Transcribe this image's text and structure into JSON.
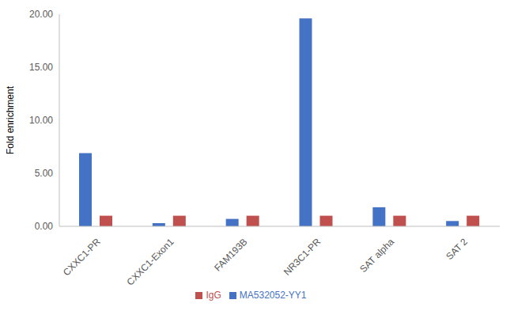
{
  "chart_data": {
    "type": "bar",
    "y_label": "Fold enrichment",
    "categories": [
      "CXXC1-PR",
      "CXXC1-Exon1",
      "FAM193B",
      "NR3C1-PR",
      "SAT alpha",
      "SAT 2"
    ],
    "series": [
      {
        "name": "MA532052-YY1",
        "color": "#4472c4",
        "values": [
          6.9,
          0.3,
          0.7,
          19.6,
          1.8,
          0.5
        ]
      },
      {
        "name": "IgG",
        "color": "#c0504d",
        "values": [
          1,
          1,
          1,
          1,
          1,
          1
        ]
      }
    ],
    "ylim": [
      0,
      20
    ],
    "yticks": [
      {
        "value": 0,
        "label": "0.00"
      },
      {
        "value": 5,
        "label": "5.00"
      },
      {
        "value": 10,
        "label": "10.00"
      },
      {
        "value": 15,
        "label": "15.00"
      },
      {
        "value": 20,
        "label": "20.00"
      }
    ],
    "grid": false,
    "legend": "bottom"
  }
}
